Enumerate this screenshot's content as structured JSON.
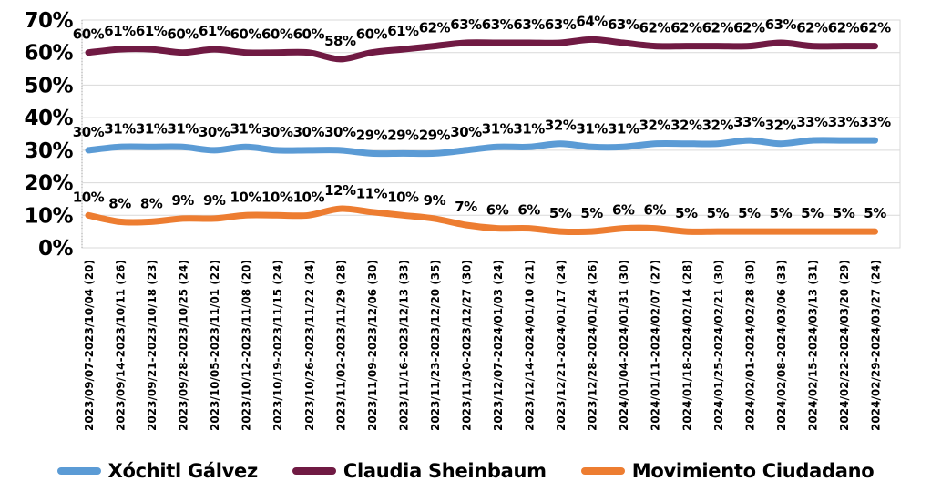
{
  "chart_data": {
    "type": "line",
    "title": "",
    "xlabel": "",
    "ylabel": "",
    "ylim": [
      0,
      70
    ],
    "grid": true,
    "data_labels": true,
    "legend_position": "bottom",
    "y_tick_labels": [
      "70%",
      "60%",
      "50%",
      "40%",
      "30%",
      "20%",
      "10%",
      "0%"
    ],
    "x_labels": [
      "2023/09/07-2023/10/04 (20)",
      "2023/09/14-2023/10/11 (26)",
      "2023/09/21-2023/10/18 (23)",
      "2023/09/28-2023/10/25 (24)",
      "2023/10/05-2023/11/01 (22)",
      "2023/10/12-2023/11/08 (20)",
      "2023/10/19-2023/11/15 (24)",
      "2023/10/26-2023/11/22 (24)",
      "2023/11/02-2023/11/29 (28)",
      "2023/11/09-2023/12/06 (30)",
      "2023/11/16-2023/12/13 (33)",
      "2023/11/23-2023/12/20 (35)",
      "2023/11/30-2023/12/27 (30)",
      "2023/12/07-2024/01/03 (24)",
      "2023/12/14-2024/01/10 (21)",
      "2023/12/21-2024/01/17 (24)",
      "2023/12/28-2024/01/24 (26)",
      "2024/01/04-2024/01/31 (30)",
      "2024/01/11-2024/02/07 (27)",
      "2024/01/18-2024/02/14 (28)",
      "2024/01/25-2024/02/21 (30)",
      "2024/02/01-2024/02/28 (30)",
      "2024/02/08-2024/03/06 (33)",
      "2024/02/15-2024/03/13 (31)",
      "2024/02/22-2024/03/20 (29)",
      "2024/02/29-2024/03/27 (24)"
    ],
    "series": [
      {
        "name": "Xóchitl Gálvez",
        "color": "#5B9BD5",
        "values": [
          30,
          31,
          31,
          31,
          30,
          31,
          30,
          30,
          30,
          29,
          29,
          29,
          30,
          31,
          31,
          32,
          31,
          31,
          32,
          32,
          32,
          33,
          32,
          33,
          33,
          33
        ]
      },
      {
        "name": "Claudia Sheinbaum",
        "color": "#701A43",
        "values": [
          60,
          61,
          61,
          60,
          61,
          60,
          60,
          60,
          58,
          60,
          61,
          62,
          63,
          63,
          63,
          63,
          64,
          63,
          62,
          62,
          62,
          62,
          63,
          62,
          62,
          62
        ]
      },
      {
        "name": "Movimiento Ciudadano",
        "color": "#ED7D31",
        "values": [
          10,
          8,
          8,
          9,
          9,
          10,
          10,
          10,
          12,
          11,
          10,
          9,
          7,
          6,
          6,
          5,
          5,
          6,
          6,
          5,
          5,
          5,
          5,
          5,
          5,
          5
        ]
      }
    ],
    "label_suffix": "%"
  }
}
